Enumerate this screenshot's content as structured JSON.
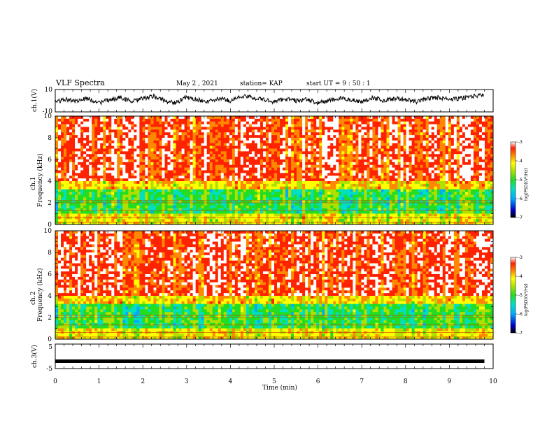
{
  "header": {
    "title": "VLF Spectra",
    "date": "May 2  , 2021",
    "station": "station= KAP",
    "start_ut": "start  UT  =   9  : 50 : 1"
  },
  "colors": {
    "spectrogram_scale": [
      "#000000",
      "#0000cc",
      "#00aaff",
      "#00e0c0",
      "#22dd22",
      "#b0e000",
      "#ffff00",
      "#ff8800",
      "#ff2200",
      "#ffffff"
    ],
    "trace": "#000000"
  },
  "chart_data": [
    {
      "type": "line",
      "panel": "ch1-waveform",
      "ylabel": "ch.1(V)",
      "ylim": [
        -10,
        10
      ],
      "yticks": [
        "10",
        "-10"
      ],
      "xlim": [
        0,
        10
      ],
      "x": [
        0,
        0.25,
        0.5,
        0.75,
        1,
        1.25,
        1.5,
        1.75,
        2,
        2.25,
        2.5,
        2.75,
        3,
        3.25,
        3.5,
        3.75,
        4,
        4.25,
        4.5,
        4.75,
        5,
        5.25,
        5.5,
        5.75,
        6,
        6.25,
        6.5,
        6.75,
        7,
        7.25,
        7.5,
        7.75,
        8,
        8.25,
        8.5,
        8.75,
        9,
        9.25,
        9.5,
        9.8
      ],
      "y": [
        -1,
        1,
        0,
        2,
        -2,
        1,
        3,
        -1,
        2,
        4,
        0,
        -2,
        3,
        1,
        -1,
        2,
        0,
        4,
        3,
        1,
        -1,
        2,
        0,
        1,
        -2,
        0,
        2,
        1,
        -1,
        3,
        0,
        2,
        1,
        -1,
        2,
        3,
        1,
        2,
        4,
        5
      ]
    },
    {
      "type": "heatmap",
      "panel": "ch1-spectrogram",
      "ylabel": "ch.1\nFrequency  (kHz)",
      "xlim": [
        0,
        10
      ],
      "ylim": [
        0,
        10
      ],
      "yticks": [
        "0",
        "2",
        "4",
        "6",
        "8",
        "10"
      ],
      "colorbar": {
        "label": "log(PSD)(V²/Hz)",
        "ticks": [
          "-3",
          "-4",
          "-5",
          "-6",
          "-7"
        ],
        "range": [
          -7,
          -3
        ]
      }
    },
    {
      "type": "heatmap",
      "panel": "ch2-spectrogram",
      "ylabel": "ch.2\nFrequency  (kHz)",
      "xlim": [
        0,
        10
      ],
      "ylim": [
        0,
        10
      ],
      "yticks": [
        "0",
        "2",
        "4",
        "6",
        "8",
        "10"
      ],
      "colorbar": {
        "label": "log(PSD)(V²/Hz)",
        "ticks": [
          "-3",
          "-4",
          "-5",
          "-6",
          "-7"
        ],
        "range": [
          -7,
          -3
        ]
      }
    },
    {
      "type": "line",
      "panel": "ch3-waveform",
      "ylabel": "ch.3(V)",
      "ylim": [
        -5,
        5
      ],
      "yticks": [
        "5",
        "0",
        "-5"
      ],
      "xlim": [
        0,
        10
      ],
      "x": [
        0,
        9.8
      ],
      "y": [
        -2,
        -2
      ]
    }
  ],
  "xaxis": {
    "label": "Time  (min)",
    "ticks": [
      "0",
      "1",
      "2",
      "3",
      "4",
      "5",
      "6",
      "7",
      "8",
      "9",
      "10"
    ]
  }
}
